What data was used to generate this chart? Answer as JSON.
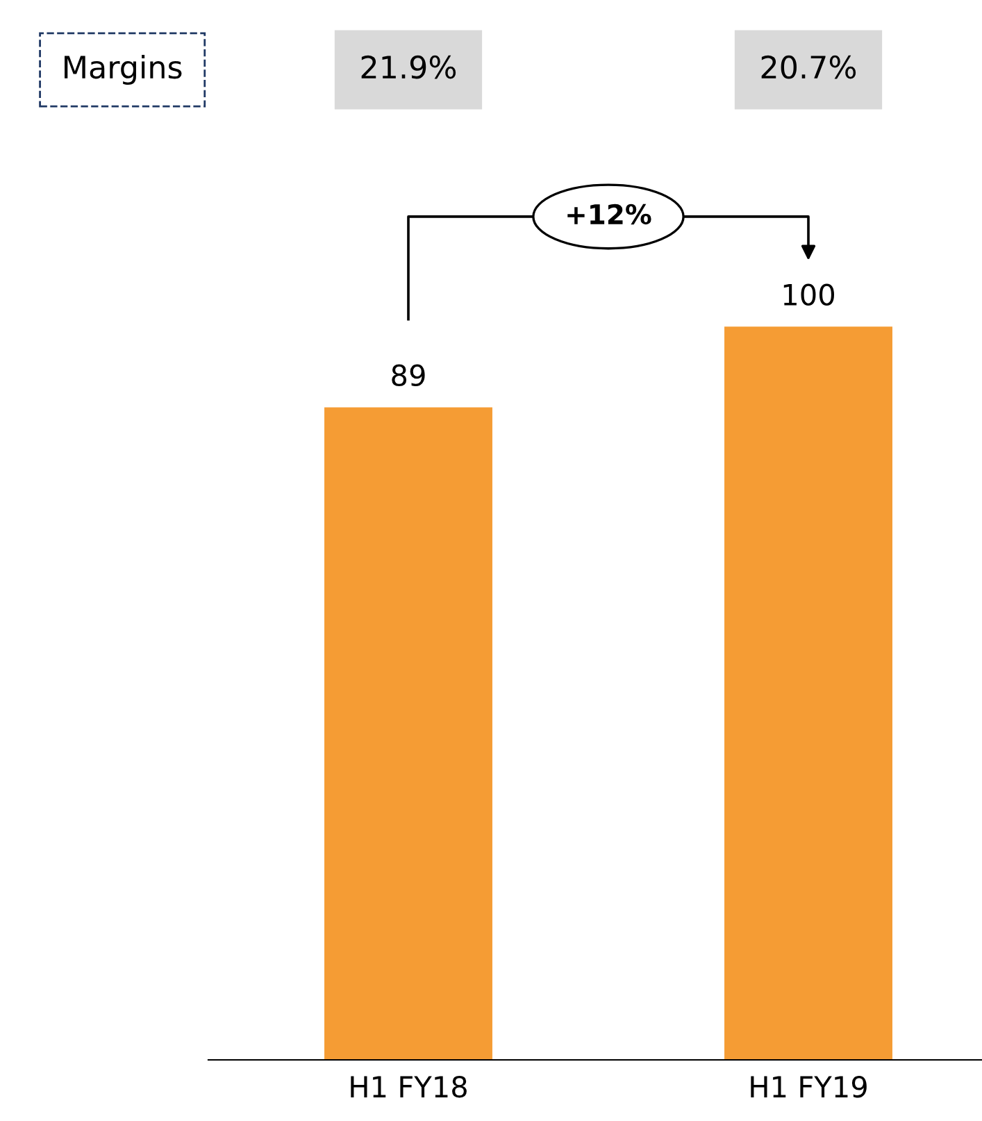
{
  "chart_data": {
    "type": "bar",
    "categories": [
      "H1 FY18",
      "H1 FY19"
    ],
    "values": [
      89,
      100
    ],
    "color": "#f59c34",
    "data_labels": true,
    "grid": false,
    "legend": false,
    "annotations": [
      "Margins",
      "21.9%",
      "20.7%",
      "+12%"
    ]
  }
}
